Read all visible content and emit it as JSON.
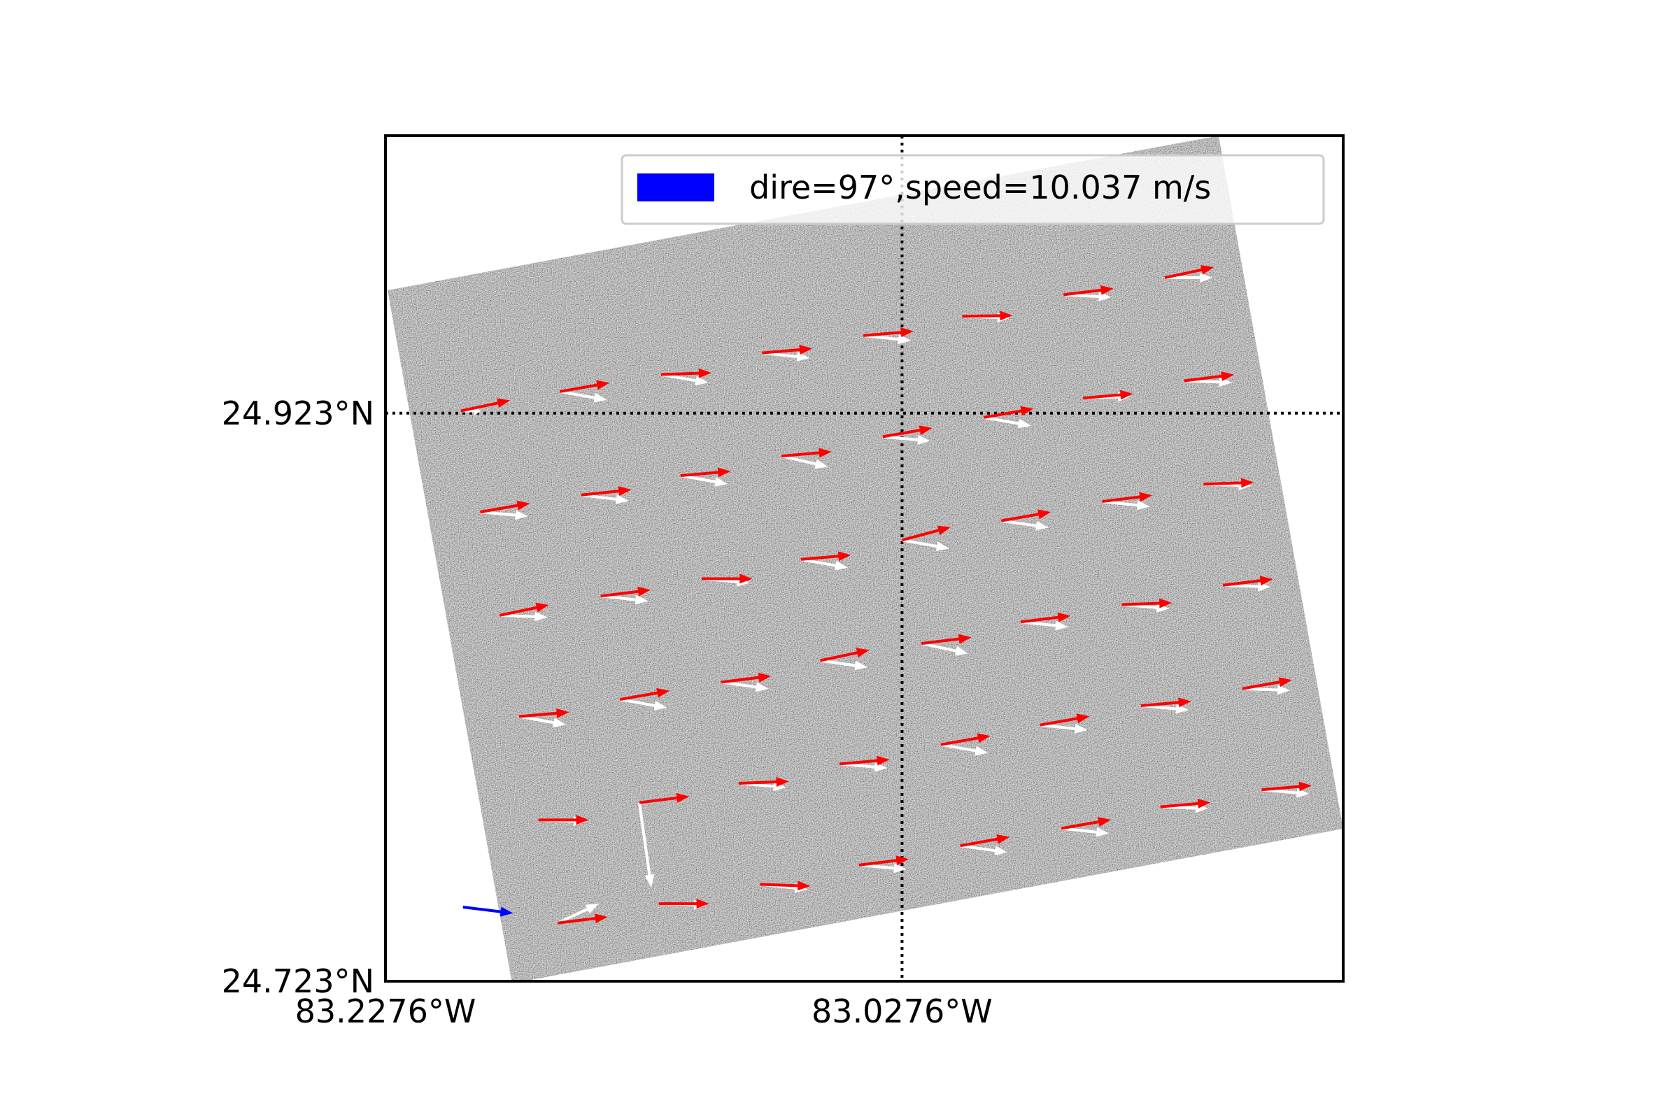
{
  "chart_data": {
    "type": "quiver",
    "xlim": [
      -83.2276,
      -82.8568
    ],
    "ylim": [
      24.723,
      25.0207
    ],
    "xticks": [
      {
        "value": -83.2276,
        "label": "83.2276°W"
      },
      {
        "value": -83.0276,
        "label": "83.0276°W"
      }
    ],
    "yticks": [
      {
        "value": 24.723,
        "label": "24.723°N"
      },
      {
        "value": 24.923,
        "label": "24.923°N"
      }
    ],
    "grid": true,
    "legend": "upper right",
    "x": [
      -83.1984,
      -83.1601,
      -83.1209,
      -83.0818,
      -83.0426,
      -83.0043,
      -82.9651,
      -82.9259,
      -83.1909,
      -83.1518,
      -83.1134,
      -83.0743,
      -83.0351,
      -82.9959,
      -82.9576,
      -82.9184,
      -83.1834,
      -83.1443,
      -83.1051,
      -83.0668,
      -83.0276,
      -82.9892,
      -82.9501,
      -82.9109,
      -83.1759,
      -83.1368,
      -83.0976,
      -83.0593,
      -83.0201,
      -82.9817,
      -82.9426,
      -82.9034,
      -83.1684,
      -83.1293,
      -83.0909,
      -83.0518,
      -83.0126,
      -82.9742,
      -82.9351,
      -82.8959,
      -83.1609,
      -83.1218,
      -83.0826,
      -83.0443,
      -83.0051,
      -82.9659,
      -82.9276,
      -82.8884
    ],
    "y": [
      24.9238,
      24.9306,
      24.9366,
      24.9442,
      24.9503,
      24.9571,
      24.9647,
      24.9707,
      24.8882,
      24.8942,
      24.901,
      24.9079,
      24.9147,
      24.9215,
      24.9283,
      24.9344,
      24.8518,
      24.8586,
      24.8647,
      24.8715,
      24.8783,
      24.8851,
      24.8919,
      24.898,
      24.8162,
      24.8222,
      24.8283,
      24.8359,
      24.8419,
      24.8495,
      24.8556,
      24.8624,
      24.7798,
      24.7859,
      24.7927,
      24.7995,
      24.8063,
      24.8132,
      24.82,
      24.826,
      24.7435,
      24.7503,
      24.7571,
      24.7639,
      24.7707,
      24.7768,
      24.7844,
      24.7904
    ],
    "series": [
      {
        "color": "#ffffff",
        "direction": [
          90,
          100,
          100,
          96,
          96,
          92,
          93,
          90,
          95,
          97,
          100,
          103,
          95,
          100,
          88,
          92,
          92,
          96,
          95,
          100,
          100,
          98,
          96,
          92,
          100,
          100,
          98,
          98,
          102,
          96,
          95,
          92,
          92,
          172,
          95,
          95,
          100,
          96,
          95,
          92,
          65,
          92,
          96,
          95,
          98,
          96,
          92,
          95
        ],
        "speed": [
          4,
          9.5,
          9.5,
          9.5,
          9.5,
          9.5,
          9.5,
          9.5,
          9.5,
          9.5,
          9.5,
          9.5,
          9.5,
          9.5,
          9.5,
          9.5,
          9.5,
          9.5,
          9.5,
          9.5,
          9.5,
          9.5,
          9.5,
          9.5,
          9.5,
          9.5,
          9.5,
          9.5,
          9.5,
          9.5,
          9.5,
          9.5,
          9.5,
          17,
          9.5,
          9.5,
          9.5,
          9.5,
          9.5,
          9.5,
          9,
          9.5,
          9.5,
          9.5,
          9.5,
          9.5,
          9.5,
          9.5
        ]
      },
      {
        "color": "#ff0000",
        "direction": [
          78,
          80,
          88,
          85,
          85,
          89,
          83,
          78,
          80,
          84,
          85,
          85,
          80,
          80,
          85,
          83,
          78,
          83,
          90,
          85,
          75,
          80,
          83,
          88,
          85,
          80,
          83,
          78,
          83,
          83,
          88,
          83,
          90,
          83,
          88,
          85,
          80,
          80,
          85,
          80,
          83,
          90,
          92,
          83,
          80,
          80,
          85,
          85
        ],
        "speed": [
          10,
          10,
          10,
          10,
          10,
          10,
          10,
          10,
          10,
          10,
          10,
          10,
          10,
          10,
          10,
          10,
          10,
          10,
          10,
          10,
          10,
          10,
          10,
          10,
          10,
          10,
          10,
          10,
          10,
          10,
          10,
          10,
          10,
          10,
          10,
          10,
          10,
          10,
          10,
          10,
          10,
          10,
          10,
          10,
          10,
          10,
          10,
          10
        ]
      },
      {
        "name": "dire=97°,speed=10.037 m/s",
        "color": "#0000ff",
        "x": [
          -83.1976
        ],
        "y": [
          24.7491
        ],
        "direction": [
          97
        ],
        "speed": [
          10.037
        ]
      }
    ]
  }
}
